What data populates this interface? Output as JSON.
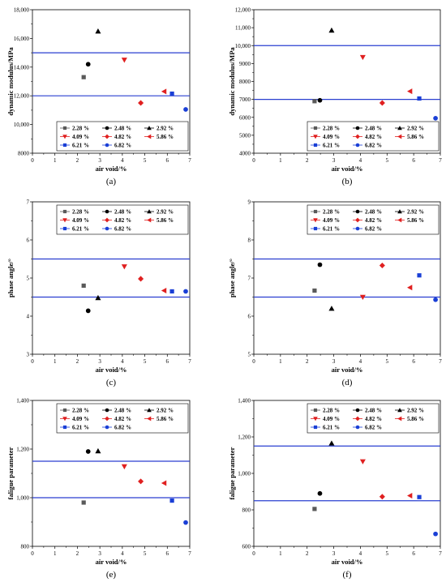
{
  "chart_data": [
    {
      "type": "scatter",
      "panel_label": "(a)",
      "xlabel": "air void/%",
      "ylabel": "dynamic modulus/MPa",
      "xlim": [
        0,
        7
      ],
      "ylim": [
        8000,
        18000
      ],
      "xticks": [
        "0",
        "1",
        "2",
        "3",
        "4",
        "5",
        "6",
        "7"
      ],
      "yticks": [
        "8000",
        "10,000",
        "12,000",
        "14,000",
        "16,000",
        "18,000"
      ],
      "yticks_values": [
        8000,
        10000,
        12000,
        14000,
        16000,
        18000
      ],
      "hlines": [
        15000,
        12000
      ],
      "legend_position": "lower-right",
      "series": [
        {
          "name": "2.28 %",
          "marker": "square",
          "color": "#5a5a5a",
          "x": 2.28,
          "y": 13300
        },
        {
          "name": "2.48 %",
          "marker": "circle",
          "color": "#000000",
          "x": 2.48,
          "y": 14200
        },
        {
          "name": "2.92 %",
          "marker": "triangle-up",
          "color": "#000000",
          "x": 2.92,
          "y": 16500
        },
        {
          "name": "4.09 %",
          "marker": "triangle-down",
          "color": "#e02020",
          "x": 4.09,
          "y": 14500
        },
        {
          "name": "4.82 %",
          "marker": "diamond",
          "color": "#e02020",
          "x": 4.82,
          "y": 11500
        },
        {
          "name": "5.86 %",
          "marker": "triangle-left",
          "color": "#e02020",
          "x": 5.86,
          "y": 12300
        },
        {
          "name": "6.21 %",
          "marker": "square",
          "color": "#1a3fd6",
          "x": 6.21,
          "y": 12150
        },
        {
          "name": "6.82 %",
          "marker": "circle",
          "color": "#1a3fd6",
          "x": 6.82,
          "y": 11050
        }
      ]
    },
    {
      "type": "scatter",
      "panel_label": "(b)",
      "xlabel": "air void/%",
      "ylabel": "dynamic modulus/MPa",
      "xlim": [
        0,
        7
      ],
      "ylim": [
        4000,
        12000
      ],
      "xticks": [
        "0",
        "1",
        "2",
        "3",
        "4",
        "5",
        "6",
        "7"
      ],
      "yticks": [
        "4000",
        "5000",
        "6000",
        "7000",
        "8000",
        "9000",
        "10,000",
        "11,000",
        "12,000"
      ],
      "yticks_values": [
        4000,
        5000,
        6000,
        7000,
        8000,
        9000,
        10000,
        11000,
        12000
      ],
      "hlines": [
        10000,
        7000
      ],
      "legend_position": "lower-right",
      "series": [
        {
          "name": "2.28 %",
          "marker": "square",
          "color": "#5a5a5a",
          "x": 2.28,
          "y": 6900
        },
        {
          "name": "2.48 %",
          "marker": "circle",
          "color": "#000000",
          "x": 2.48,
          "y": 6950
        },
        {
          "name": "2.92 %",
          "marker": "triangle-up",
          "color": "#000000",
          "x": 2.92,
          "y": 10850
        },
        {
          "name": "4.09 %",
          "marker": "triangle-down",
          "color": "#e02020",
          "x": 4.09,
          "y": 9350
        },
        {
          "name": "4.82 %",
          "marker": "diamond",
          "color": "#e02020",
          "x": 4.82,
          "y": 6800
        },
        {
          "name": "5.86 %",
          "marker": "triangle-left",
          "color": "#e02020",
          "x": 5.86,
          "y": 7450
        },
        {
          "name": "6.21 %",
          "marker": "square",
          "color": "#1a3fd6",
          "x": 6.21,
          "y": 7050
        },
        {
          "name": "6.82 %",
          "marker": "circle",
          "color": "#1a3fd6",
          "x": 6.82,
          "y": 5950
        }
      ]
    },
    {
      "type": "scatter",
      "panel_label": "(c)",
      "xlabel": "air void/%",
      "ylabel": "phase angle/°",
      "xlim": [
        0,
        7
      ],
      "ylim": [
        3,
        7
      ],
      "xticks": [
        "0",
        "1",
        "2",
        "3",
        "4",
        "5",
        "6",
        "7"
      ],
      "yticks": [
        "3",
        "4",
        "5",
        "6",
        "7"
      ],
      "yticks_values": [
        3,
        4,
        5,
        6,
        7
      ],
      "hlines": [
        5.5,
        4.5
      ],
      "legend_position": "top-right",
      "series": [
        {
          "name": "2.28 %",
          "marker": "square",
          "color": "#5a5a5a",
          "x": 2.28,
          "y": 4.8
        },
        {
          "name": "2.48 %",
          "marker": "circle",
          "color": "#000000",
          "x": 2.48,
          "y": 4.14
        },
        {
          "name": "2.92 %",
          "marker": "triangle-up",
          "color": "#000000",
          "x": 2.92,
          "y": 4.48
        },
        {
          "name": "4.09 %",
          "marker": "triangle-down",
          "color": "#e02020",
          "x": 4.09,
          "y": 5.3
        },
        {
          "name": "4.82 %",
          "marker": "diamond",
          "color": "#e02020",
          "x": 4.82,
          "y": 4.98
        },
        {
          "name": "5.86 %",
          "marker": "triangle-left",
          "color": "#e02020",
          "x": 5.86,
          "y": 4.67
        },
        {
          "name": "6.21 %",
          "marker": "square",
          "color": "#1a3fd6",
          "x": 6.21,
          "y": 4.65
        },
        {
          "name": "6.82 %",
          "marker": "circle",
          "color": "#1a3fd6",
          "x": 6.82,
          "y": 4.65
        }
      ]
    },
    {
      "type": "scatter",
      "panel_label": "(d)",
      "xlabel": "air void/%",
      "ylabel": "phase angle/°",
      "xlim": [
        0,
        7
      ],
      "ylim": [
        5,
        9
      ],
      "xticks": [
        "0",
        "1",
        "2",
        "3",
        "4",
        "5",
        "6",
        "7"
      ],
      "yticks": [
        "5",
        "6",
        "7",
        "8",
        "9"
      ],
      "yticks_values": [
        5,
        6,
        7,
        8,
        9
      ],
      "hlines": [
        7.5,
        6.5
      ],
      "legend_position": "top-right",
      "series": [
        {
          "name": "2.28 %",
          "marker": "square",
          "color": "#5a5a5a",
          "x": 2.28,
          "y": 6.67
        },
        {
          "name": "2.48 %",
          "marker": "circle",
          "color": "#000000",
          "x": 2.48,
          "y": 7.35
        },
        {
          "name": "2.92 %",
          "marker": "triangle-up",
          "color": "#000000",
          "x": 2.92,
          "y": 6.2
        },
        {
          "name": "4.09 %",
          "marker": "triangle-down",
          "color": "#e02020",
          "x": 4.09,
          "y": 6.5
        },
        {
          "name": "4.82 %",
          "marker": "diamond",
          "color": "#e02020",
          "x": 4.82,
          "y": 7.33
        },
        {
          "name": "5.86 %",
          "marker": "triangle-left",
          "color": "#e02020",
          "x": 5.86,
          "y": 6.75
        },
        {
          "name": "6.21 %",
          "marker": "square",
          "color": "#1a3fd6",
          "x": 6.21,
          "y": 7.07
        },
        {
          "name": "6.82 %",
          "marker": "circle",
          "color": "#1a3fd6",
          "x": 6.82,
          "y": 6.43
        }
      ]
    },
    {
      "type": "scatter",
      "panel_label": "(e)",
      "xlabel": "air void/%",
      "ylabel": "faligue parameter",
      "xlim": [
        0,
        7
      ],
      "ylim": [
        800,
        1400
      ],
      "xticks": [
        "0",
        "1",
        "2",
        "3",
        "4",
        "5",
        "6",
        "7"
      ],
      "yticks": [
        "800",
        "1,000",
        "1,200",
        "1,400"
      ],
      "yticks_values": [
        800,
        1000,
        1200,
        1400
      ],
      "hlines": [
        1150,
        1000
      ],
      "legend_position": "top-right",
      "series": [
        {
          "name": "2.28 %",
          "marker": "square",
          "color": "#5a5a5a",
          "x": 2.28,
          "y": 980
        },
        {
          "name": "2.48 %",
          "marker": "circle",
          "color": "#000000",
          "x": 2.48,
          "y": 1190
        },
        {
          "name": "2.92 %",
          "marker": "triangle-up",
          "color": "#000000",
          "x": 2.92,
          "y": 1192
        },
        {
          "name": "4.09 %",
          "marker": "triangle-down",
          "color": "#e02020",
          "x": 4.09,
          "y": 1128
        },
        {
          "name": "4.82 %",
          "marker": "diamond",
          "color": "#e02020",
          "x": 4.82,
          "y": 1067
        },
        {
          "name": "5.86 %",
          "marker": "triangle-left",
          "color": "#e02020",
          "x": 5.86,
          "y": 1060
        },
        {
          "name": "6.21 %",
          "marker": "square",
          "color": "#1a3fd6",
          "x": 6.21,
          "y": 988
        },
        {
          "name": "6.82 %",
          "marker": "circle",
          "color": "#1a3fd6",
          "x": 6.82,
          "y": 898
        }
      ]
    },
    {
      "type": "scatter",
      "panel_label": "(f)",
      "xlabel": "air void/%",
      "ylabel": "faligue parameter",
      "xlim": [
        0,
        7
      ],
      "ylim": [
        600,
        1400
      ],
      "xticks": [
        "0",
        "1",
        "2",
        "3",
        "4",
        "5",
        "6",
        "7"
      ],
      "yticks": [
        "600",
        "800",
        "1,000",
        "1,200",
        "1,400"
      ],
      "yticks_values": [
        600,
        800,
        1000,
        1200,
        1400
      ],
      "hlines": [
        1150,
        850
      ],
      "legend_position": "top-right",
      "series": [
        {
          "name": "2.28 %",
          "marker": "square",
          "color": "#5a5a5a",
          "x": 2.28,
          "y": 805
        },
        {
          "name": "2.48 %",
          "marker": "circle",
          "color": "#000000",
          "x": 2.48,
          "y": 890
        },
        {
          "name": "2.92 %",
          "marker": "triangle-up",
          "color": "#000000",
          "x": 2.92,
          "y": 1165
        },
        {
          "name": "4.09 %",
          "marker": "triangle-down",
          "color": "#e02020",
          "x": 4.09,
          "y": 1065
        },
        {
          "name": "4.82 %",
          "marker": "diamond",
          "color": "#e02020",
          "x": 4.82,
          "y": 872
        },
        {
          "name": "5.86 %",
          "marker": "triangle-left",
          "color": "#e02020",
          "x": 5.86,
          "y": 878
        },
        {
          "name": "6.21 %",
          "marker": "square",
          "color": "#1a3fd6",
          "x": 6.21,
          "y": 870
        },
        {
          "name": "6.82 %",
          "marker": "circle",
          "color": "#1a3fd6",
          "x": 6.82,
          "y": 668
        }
      ]
    }
  ],
  "colors": {
    "hline": "#2a3fd0",
    "axis": "#000000"
  }
}
